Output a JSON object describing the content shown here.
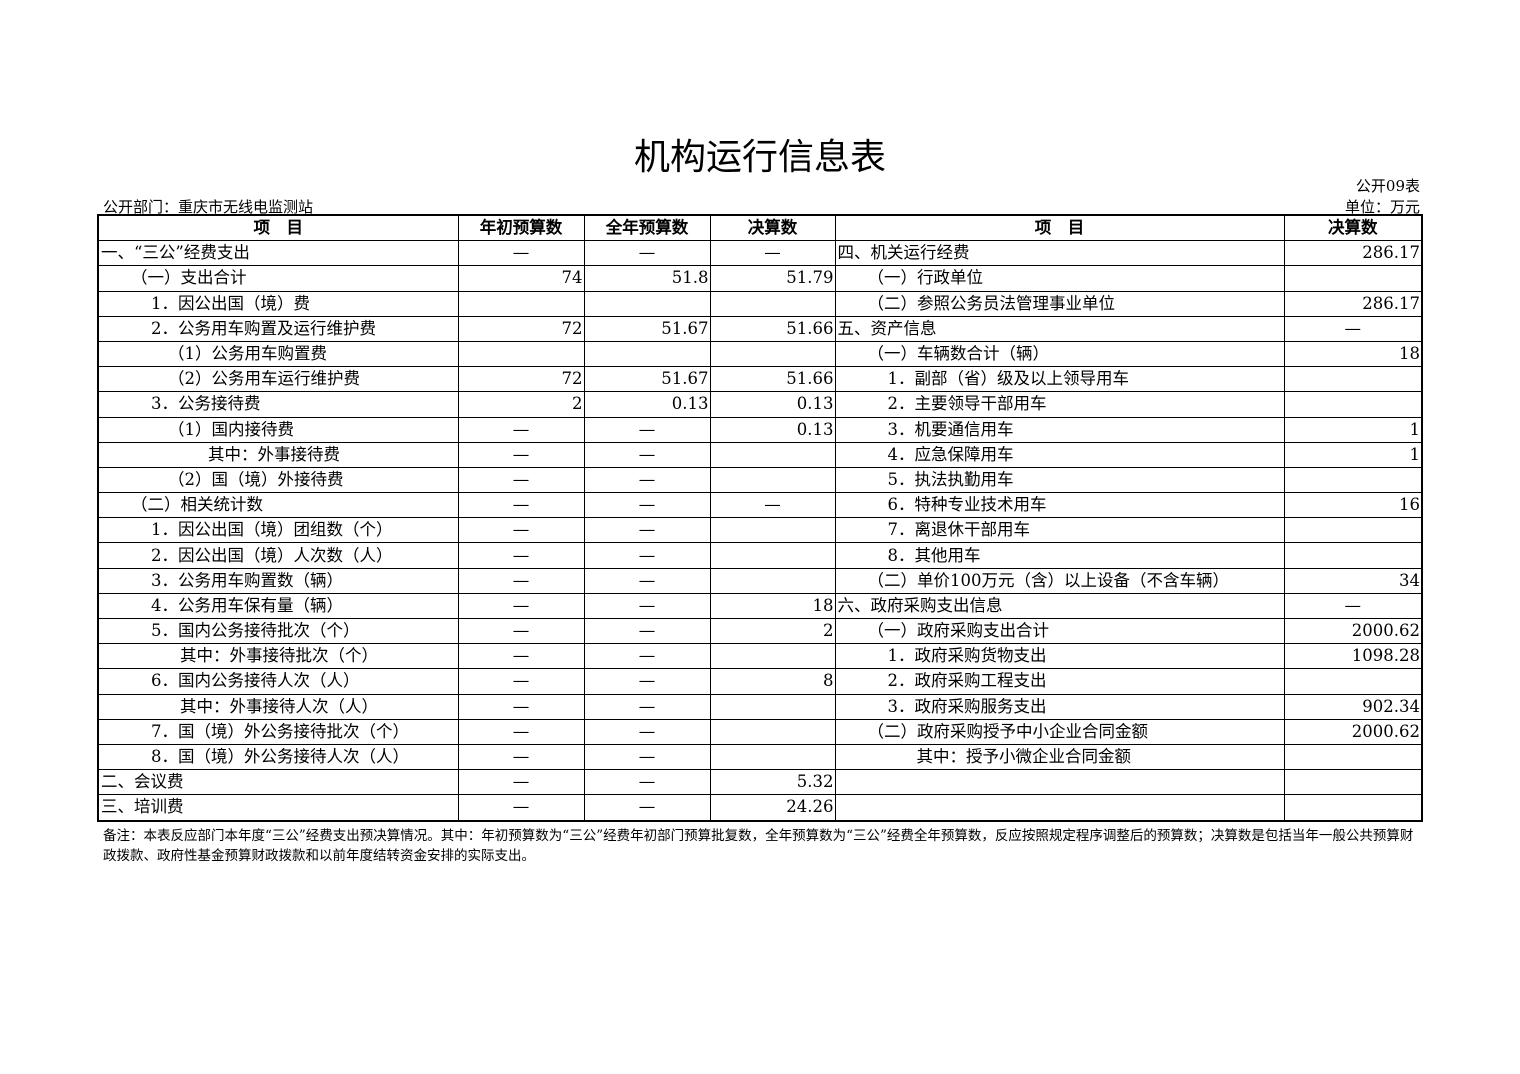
{
  "title": "机构运行信息表",
  "table_no": "公开09表",
  "unit": "单位：万元",
  "department": "公开部门：重庆市无线电监测站",
  "headers": {
    "left_item": "项　目",
    "budget_initial": "年初预算数",
    "budget_full": "全年预算数",
    "final_left": "决算数",
    "right_item": "项　目",
    "final_right": "决算数"
  },
  "rows": [
    {
      "l": "一、“三公”经费支出",
      "li": 0,
      "a": "—",
      "b": "—",
      "c": "—",
      "r": "四、机关运行经费",
      "ri": 0,
      "v": "286.17"
    },
    {
      "l": "（一）支出合计",
      "li": 1,
      "a": "74",
      "b": "51.8",
      "c": "51.79",
      "r": "（一）行政单位",
      "ri": 1,
      "v": ""
    },
    {
      "l": "1．因公出国（境）费",
      "li": 2,
      "a": "",
      "b": "",
      "c": "",
      "r": "（二）参照公务员法管理事业单位",
      "ri": 1,
      "v": "286.17"
    },
    {
      "l": "2．公务用车购置及运行维护费",
      "li": 2,
      "a": "72",
      "b": "51.67",
      "c": "51.66",
      "r": "五、资产信息",
      "ri": 0,
      "v": "—"
    },
    {
      "l": "（1）公务用车购置费",
      "li": 3,
      "a": "",
      "b": "",
      "c": "",
      "r": "（一）车辆数合计（辆）",
      "ri": 1,
      "v": "18"
    },
    {
      "l": "（2）公务用车运行维护费",
      "li": 3,
      "a": "72",
      "b": "51.67",
      "c": "51.66",
      "r": "1．副部（省）级及以上领导用车",
      "ri": 2,
      "v": ""
    },
    {
      "l": "3．公务接待费",
      "li": 2,
      "a": "2",
      "b": "0.13",
      "c": "0.13",
      "r": "2．主要领导干部用车",
      "ri": 2,
      "v": ""
    },
    {
      "l": "（1）国内接待费",
      "li": 3,
      "a": "—",
      "b": "—",
      "c": "0.13",
      "r": "3．机要通信用车",
      "ri": 2,
      "v": "1"
    },
    {
      "l": "其中：外事接待费",
      "li": 5,
      "a": "—",
      "b": "—",
      "c": "",
      "r": "4．应急保障用车",
      "ri": 2,
      "v": "1"
    },
    {
      "l": "（2）国（境）外接待费",
      "li": 3,
      "a": "—",
      "b": "—",
      "c": "",
      "r": "5．执法执勤用车",
      "ri": 2,
      "v": ""
    },
    {
      "l": "（二）相关统计数",
      "li": 1,
      "a": "—",
      "b": "—",
      "c": "—",
      "r": "6．特种专业技术用车",
      "ri": 2,
      "v": "16"
    },
    {
      "l": "1．因公出国（境）团组数（个）",
      "li": 2,
      "a": "—",
      "b": "—",
      "c": "",
      "r": "7．离退休干部用车",
      "ri": 2,
      "v": ""
    },
    {
      "l": "2．因公出国（境）人次数（人）",
      "li": 2,
      "a": "—",
      "b": "—",
      "c": "",
      "r": "8．其他用车",
      "ri": 2,
      "v": ""
    },
    {
      "l": "3．公务用车购置数（辆）",
      "li": 2,
      "a": "—",
      "b": "—",
      "c": "",
      "r": "（二）单价100万元（含）以上设备（不含车辆）",
      "ri": 1,
      "v": "34"
    },
    {
      "l": "4．公务用车保有量（辆）",
      "li": 2,
      "a": "—",
      "b": "—",
      "c": "18",
      "r": "六、政府采购支出信息",
      "ri": 0,
      "v": "—"
    },
    {
      "l": "5．国内公务接待批次（个）",
      "li": 2,
      "a": "—",
      "b": "—",
      "c": "2",
      "r": "（一）政府采购支出合计",
      "ri": 1,
      "v": "2000.62"
    },
    {
      "l": "其中：外事接待批次（个）",
      "li": 4,
      "a": "—",
      "b": "—",
      "c": "",
      "r": "1．政府采购货物支出",
      "ri": 2,
      "v": "1098.28"
    },
    {
      "l": "6．国内公务接待人次（人）",
      "li": 2,
      "a": "—",
      "b": "—",
      "c": "8",
      "r": "2．政府采购工程支出",
      "ri": 2,
      "v": ""
    },
    {
      "l": "其中：外事接待人次（人）",
      "li": 4,
      "a": "—",
      "b": "—",
      "c": "",
      "r": "3．政府采购服务支出",
      "ri": 2,
      "v": "902.34"
    },
    {
      "l": "7．国（境）外公务接待批次（个）",
      "li": 2,
      "a": "—",
      "b": "—",
      "c": "",
      "r": "（二）政府采购授予中小企业合同金额",
      "ri": 1,
      "v": "2000.62"
    },
    {
      "l": "8．国（境）外公务接待人次（人）",
      "li": 2,
      "a": "—",
      "b": "—",
      "c": "",
      "r": "其中：授予小微企业合同金额",
      "ri": 4,
      "v": ""
    },
    {
      "l": "二、会议费",
      "li": 0,
      "a": "—",
      "b": "—",
      "c": "5.32",
      "r": "",
      "ri": 0,
      "v": ""
    },
    {
      "l": "三、培训费",
      "li": 0,
      "a": "—",
      "b": "—",
      "c": "24.26",
      "r": "",
      "ri": 0,
      "v": ""
    }
  ],
  "note": "备注：本表反应部门本年度“三公”经费支出预决算情况。其中：年初预算数为“三公”经费年初部门预算批复数，全年预算数为“三公”经费全年预算数，反应按照规定程序调整后的预算数；决算数是包括当年一般公共预算财政拨款、政府性基金预算财政拨款和以前年度结转资金安排的实际支出。"
}
